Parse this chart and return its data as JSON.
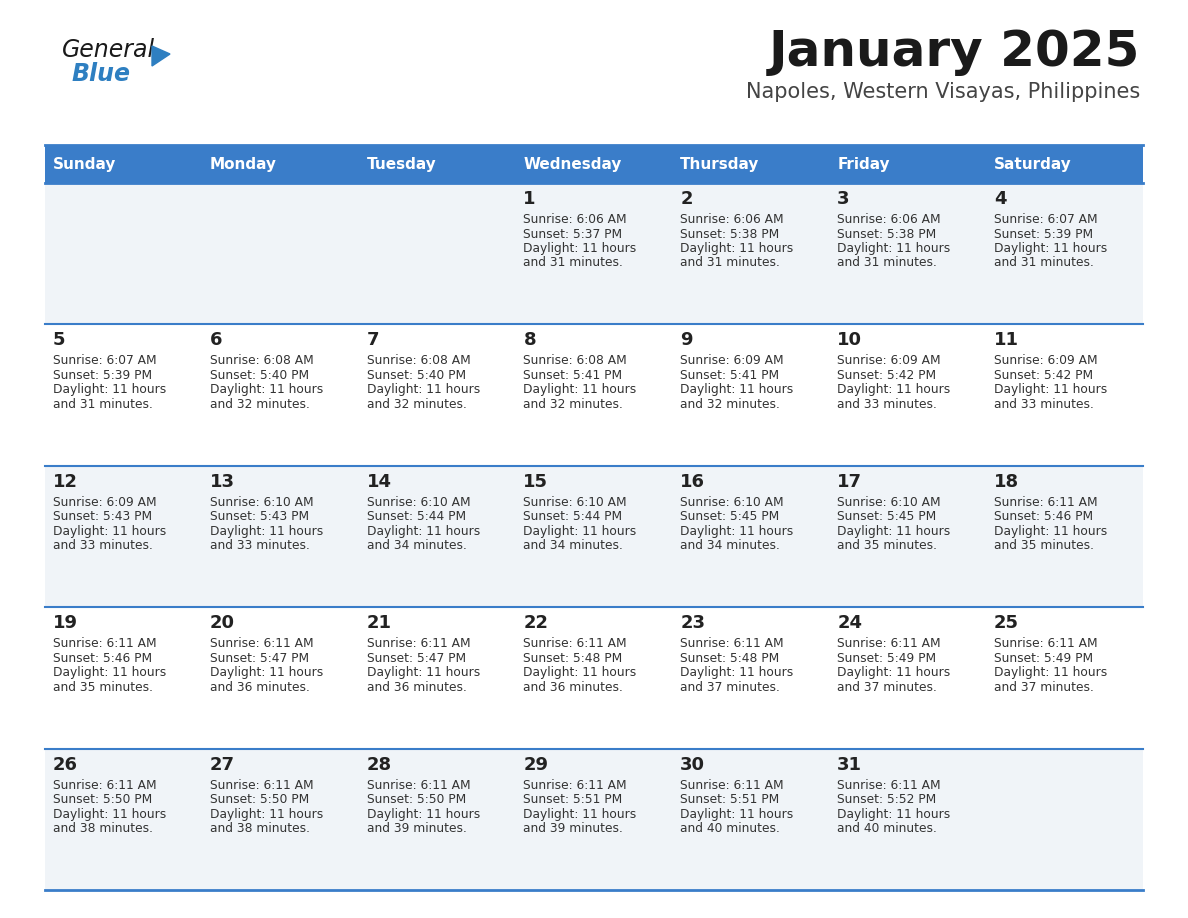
{
  "title": "January 2025",
  "subtitle": "Napoles, Western Visayas, Philippines",
  "days_of_week": [
    "Sunday",
    "Monday",
    "Tuesday",
    "Wednesday",
    "Thursday",
    "Friday",
    "Saturday"
  ],
  "header_bg": "#3A7DC9",
  "header_text": "#FFFFFF",
  "row_bg_odd": "#F0F4F8",
  "row_bg_even": "#FFFFFF",
  "cell_text": "#333333",
  "day_num_color": "#222222",
  "divider_color": "#3A7DC9",
  "logo_general_color": "#1a1a1a",
  "logo_blue_color": "#2E7FC1",
  "calendar_data": [
    [
      {
        "day": "",
        "sunrise": "",
        "sunset": "",
        "daylight_min": ""
      },
      {
        "day": "",
        "sunrise": "",
        "sunset": "",
        "daylight_min": ""
      },
      {
        "day": "",
        "sunrise": "",
        "sunset": "",
        "daylight_min": ""
      },
      {
        "day": "1",
        "sunrise": "6:06 AM",
        "sunset": "5:37 PM",
        "daylight_min": "31"
      },
      {
        "day": "2",
        "sunrise": "6:06 AM",
        "sunset": "5:38 PM",
        "daylight_min": "31"
      },
      {
        "day": "3",
        "sunrise": "6:06 AM",
        "sunset": "5:38 PM",
        "daylight_min": "31"
      },
      {
        "day": "4",
        "sunrise": "6:07 AM",
        "sunset": "5:39 PM",
        "daylight_min": "31"
      }
    ],
    [
      {
        "day": "5",
        "sunrise": "6:07 AM",
        "sunset": "5:39 PM",
        "daylight_min": "31"
      },
      {
        "day": "6",
        "sunrise": "6:08 AM",
        "sunset": "5:40 PM",
        "daylight_min": "32"
      },
      {
        "day": "7",
        "sunrise": "6:08 AM",
        "sunset": "5:40 PM",
        "daylight_min": "32"
      },
      {
        "day": "8",
        "sunrise": "6:08 AM",
        "sunset": "5:41 PM",
        "daylight_min": "32"
      },
      {
        "day": "9",
        "sunrise": "6:09 AM",
        "sunset": "5:41 PM",
        "daylight_min": "32"
      },
      {
        "day": "10",
        "sunrise": "6:09 AM",
        "sunset": "5:42 PM",
        "daylight_min": "33"
      },
      {
        "day": "11",
        "sunrise": "6:09 AM",
        "sunset": "5:42 PM",
        "daylight_min": "33"
      }
    ],
    [
      {
        "day": "12",
        "sunrise": "6:09 AM",
        "sunset": "5:43 PM",
        "daylight_min": "33"
      },
      {
        "day": "13",
        "sunrise": "6:10 AM",
        "sunset": "5:43 PM",
        "daylight_min": "33"
      },
      {
        "day": "14",
        "sunrise": "6:10 AM",
        "sunset": "5:44 PM",
        "daylight_min": "34"
      },
      {
        "day": "15",
        "sunrise": "6:10 AM",
        "sunset": "5:44 PM",
        "daylight_min": "34"
      },
      {
        "day": "16",
        "sunrise": "6:10 AM",
        "sunset": "5:45 PM",
        "daylight_min": "34"
      },
      {
        "day": "17",
        "sunrise": "6:10 AM",
        "sunset": "5:45 PM",
        "daylight_min": "35"
      },
      {
        "day": "18",
        "sunrise": "6:11 AM",
        "sunset": "5:46 PM",
        "daylight_min": "35"
      }
    ],
    [
      {
        "day": "19",
        "sunrise": "6:11 AM",
        "sunset": "5:46 PM",
        "daylight_min": "35"
      },
      {
        "day": "20",
        "sunrise": "6:11 AM",
        "sunset": "5:47 PM",
        "daylight_min": "36"
      },
      {
        "day": "21",
        "sunrise": "6:11 AM",
        "sunset": "5:47 PM",
        "daylight_min": "36"
      },
      {
        "day": "22",
        "sunrise": "6:11 AM",
        "sunset": "5:48 PM",
        "daylight_min": "36"
      },
      {
        "day": "23",
        "sunrise": "6:11 AM",
        "sunset": "5:48 PM",
        "daylight_min": "37"
      },
      {
        "day": "24",
        "sunrise": "6:11 AM",
        "sunset": "5:49 PM",
        "daylight_min": "37"
      },
      {
        "day": "25",
        "sunrise": "6:11 AM",
        "sunset": "5:49 PM",
        "daylight_min": "37"
      }
    ],
    [
      {
        "day": "26",
        "sunrise": "6:11 AM",
        "sunset": "5:50 PM",
        "daylight_min": "38"
      },
      {
        "day": "27",
        "sunrise": "6:11 AM",
        "sunset": "5:50 PM",
        "daylight_min": "38"
      },
      {
        "day": "28",
        "sunrise": "6:11 AM",
        "sunset": "5:50 PM",
        "daylight_min": "39"
      },
      {
        "day": "29",
        "sunrise": "6:11 AM",
        "sunset": "5:51 PM",
        "daylight_min": "39"
      },
      {
        "day": "30",
        "sunrise": "6:11 AM",
        "sunset": "5:51 PM",
        "daylight_min": "40"
      },
      {
        "day": "31",
        "sunrise": "6:11 AM",
        "sunset": "5:52 PM",
        "daylight_min": "40"
      },
      {
        "day": "",
        "sunrise": "",
        "sunset": "",
        "daylight_min": ""
      }
    ]
  ]
}
